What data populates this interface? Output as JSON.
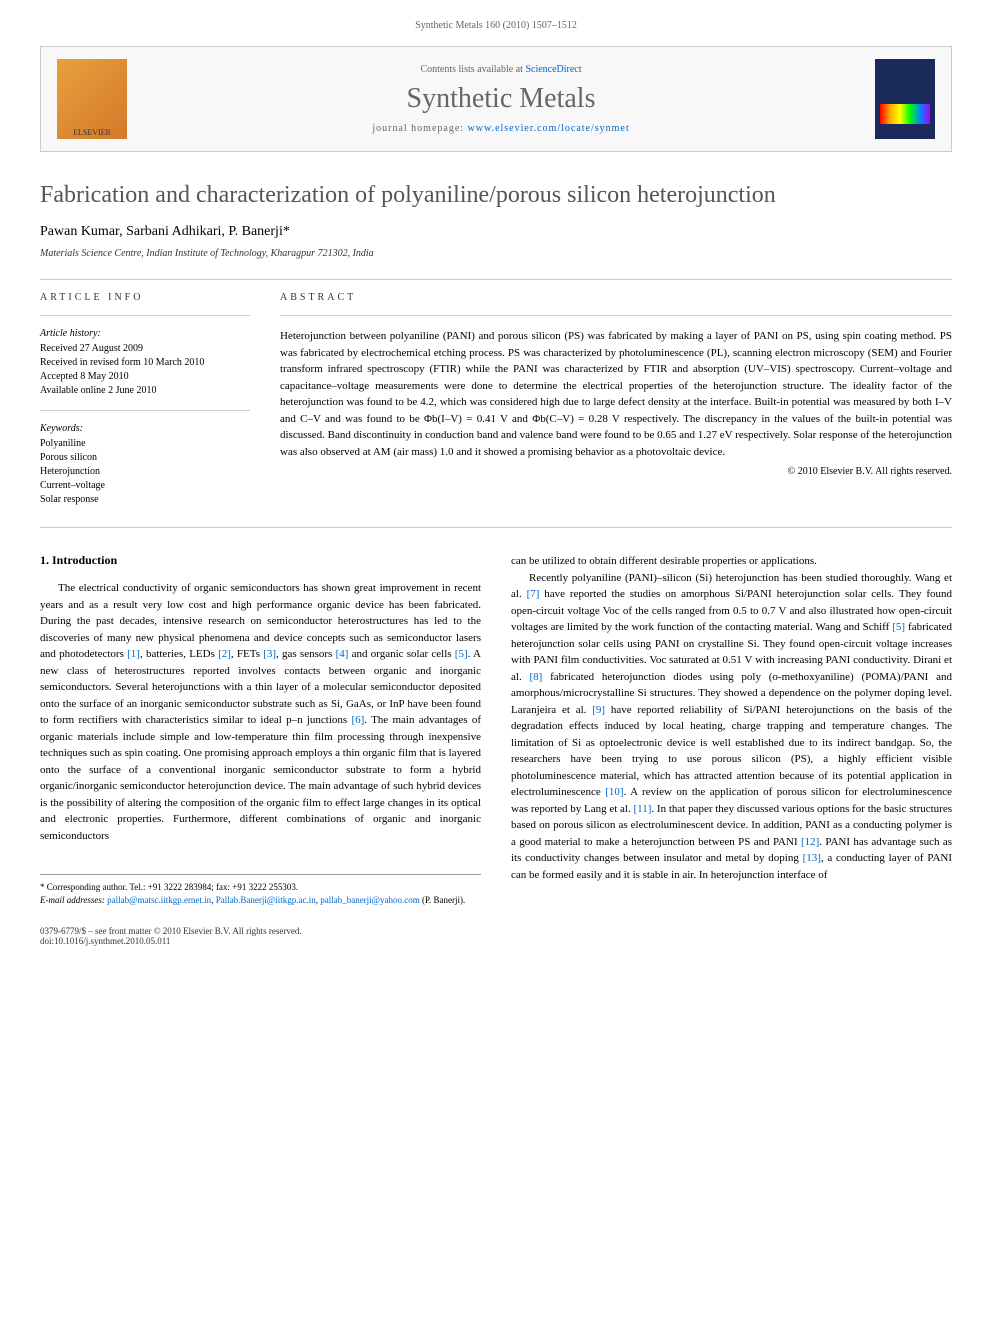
{
  "page_header": "Synthetic Metals 160 (2010) 1507–1512",
  "banner": {
    "contents_line_prefix": "Contents lists available at ",
    "contents_link": "ScienceDirect",
    "journal_name": "Synthetic Metals",
    "homepage_prefix": "journal homepage: ",
    "homepage_url": "www.elsevier.com/locate/synmet",
    "elsevier_label": "ELSEVIER"
  },
  "article": {
    "title": "Fabrication and characterization of polyaniline/porous silicon heterojunction",
    "authors": "Pawan Kumar, Sarbani Adhikari, P. Banerji*",
    "affiliation": "Materials Science Centre, Indian Institute of Technology, Kharagpur 721302, India"
  },
  "info": {
    "heading": "article info",
    "history_label": "Article history:",
    "received": "Received 27 August 2009",
    "revised": "Received in revised form 10 March 2010",
    "accepted": "Accepted 8 May 2010",
    "online": "Available online 2 June 2010",
    "keywords_label": "Keywords:",
    "kw1": "Polyaniline",
    "kw2": "Porous silicon",
    "kw3": "Heterojunction",
    "kw4": "Current–voltage",
    "kw5": "Solar response"
  },
  "abstract": {
    "heading": "abstract",
    "text": "Heterojunction between polyaniline (PANI) and porous silicon (PS) was fabricated by making a layer of PANI on PS, using spin coating method. PS was fabricated by electrochemical etching process. PS was characterized by photoluminescence (PL), scanning electron microscopy (SEM) and Fourier transform infrared spectroscopy (FTIR) while the PANI was characterized by FTIR and absorption (UV–VIS) spectroscopy. Current–voltage and capacitance–voltage measurements were done to determine the electrical properties of the heterojunction structure. The ideality factor of the heterojunction was found to be 4.2, which was considered high due to large defect density at the interface. Built-in potential was measured by both I–V and C–V and was found to be Φb(I–V) = 0.41 V and Φb(C–V) = 0.28 V respectively. The discrepancy in the values of the built-in potential was discussed. Band discontinuity in conduction band and valence band were found to be 0.65 and 1.27 eV respectively. Solar response of the heterojunction was also observed at AM (air mass) 1.0 and it showed a promising behavior as a photovoltaic device.",
    "copyright": "© 2010 Elsevier B.V. All rights reserved."
  },
  "body": {
    "section_1_heading": "1. Introduction",
    "col1_p1_a": "The electrical conductivity of organic semiconductors has shown great improvement in recent years and as a result very low cost and high performance organic device has been fabricated. During the past decades, intensive research on semiconductor heterostructures has led to the discoveries of many new physical phenomena and device concepts such as semiconductor lasers and photodetectors ",
    "ref1": "[1]",
    "col1_p1_b": ", batteries, LEDs ",
    "ref2": "[2]",
    "col1_p1_c": ", FETs ",
    "ref3": "[3]",
    "col1_p1_d": ", gas sensors ",
    "ref4": "[4]",
    "col1_p1_e": " and organic solar cells ",
    "ref5": "[5]",
    "col1_p1_f": ". A new class of heterostructures reported involves contacts between organic and inorganic semiconductors. Several heterojunctions with a thin layer of a molecular semiconductor deposited onto the surface of an inorganic semiconductor substrate such as Si, GaAs, or InP have been found to form rectifiers with characteristics similar to ideal p–n junctions ",
    "ref6": "[6]",
    "col1_p1_g": ". The main advantages of organic materials include simple and low-temperature thin film processing through inexpensive techniques such as spin coating. One promising approach employs a thin organic film that is layered onto the surface of a conventional inorganic semiconductor substrate to form a hybrid organic/inorganic semiconductor heterojunction device. The main advantage of such hybrid devices is the possibility of altering the composition of the organic film to effect large changes in its optical and electronic properties. Furthermore, different combinations of organic and inorganic semiconductors",
    "col2_p1": "can be utilized to obtain different desirable properties or applications.",
    "col2_p2_a": "Recently polyaniline (PANI)–silicon (Si) heterojunction has been studied thoroughly. Wang et al. ",
    "ref7": "[7]",
    "col2_p2_b": " have reported the studies on amorphous Si/PANI heterojunction solar cells. They found open-circuit voltage Voc of the cells ranged from 0.5 to 0.7 V and also illustrated how open-circuit voltages are limited by the work function of the contacting material. Wang and Schiff ",
    "ref5b": "[5]",
    "col2_p2_c": " fabricated heterojunction solar cells using PANI on crystalline Si. They found open-circuit voltage increases with PANI film conductivities. Voc saturated at 0.51 V with increasing PANI conductivity. Dirani et al. ",
    "ref8": "[8]",
    "col2_p2_d": " fabricated heterojunction diodes using poly (o-methoxyaniline) (POMA)/PANI and amorphous/microcrystalline Si structures. They showed a dependence on the polymer doping level. Laranjeira et al. ",
    "ref9": "[9]",
    "col2_p2_e": " have reported reliability of Si/PANI heterojunctions on the basis of the degradation effects induced by local heating, charge trapping and temperature changes. The limitation of Si as optoelectronic device is well established due to its indirect bandgap. So, the researchers have been trying to use porous silicon (PS), a highly efficient visible photoluminescence material, which has attracted attention because of its potential application in electroluminescence ",
    "ref10": "[10]",
    "col2_p2_f": ". A review on the application of porous silicon for electroluminescence was reported by Lang et al. ",
    "ref11": "[11]",
    "col2_p2_g": ". In that paper they discussed various options for the basic structures based on porous silicon as electroluminescent device. In addition, PANI as a conducting polymer is a good material to make a heterojunction between PS and PANI ",
    "ref12": "[12]",
    "col2_p2_h": ". PANI has advantage such as its conductivity changes between insulator and metal by doping ",
    "ref13": "[13]",
    "col2_p2_i": ", a conducting layer of PANI can be formed easily and it is stable in air. In heterojunction interface of"
  },
  "footnote": {
    "corr_label": "* Corresponding author. Tel.: +91 3222 283984; fax: +91 3222 255303.",
    "email_label": "E-mail addresses: ",
    "email1": "pallab@matsc.iitkgp.ernet.in",
    "email_sep1": ", ",
    "email2": "Pallab.Banerji@iitkgp.ac.in",
    "email_sep2": ", ",
    "email3": "pallab_banerji@yahoo.com",
    "email_author": " (P. Banerji)."
  },
  "footer": {
    "line1": "0379-6779/$ – see front matter © 2010 Elsevier B.V. All rights reserved.",
    "line2": "doi:10.1016/j.synthmet.2010.05.011"
  },
  "colors": {
    "link": "#0066cc",
    "text_gray": "#666666",
    "title_gray": "#555555",
    "border": "#cccccc"
  }
}
